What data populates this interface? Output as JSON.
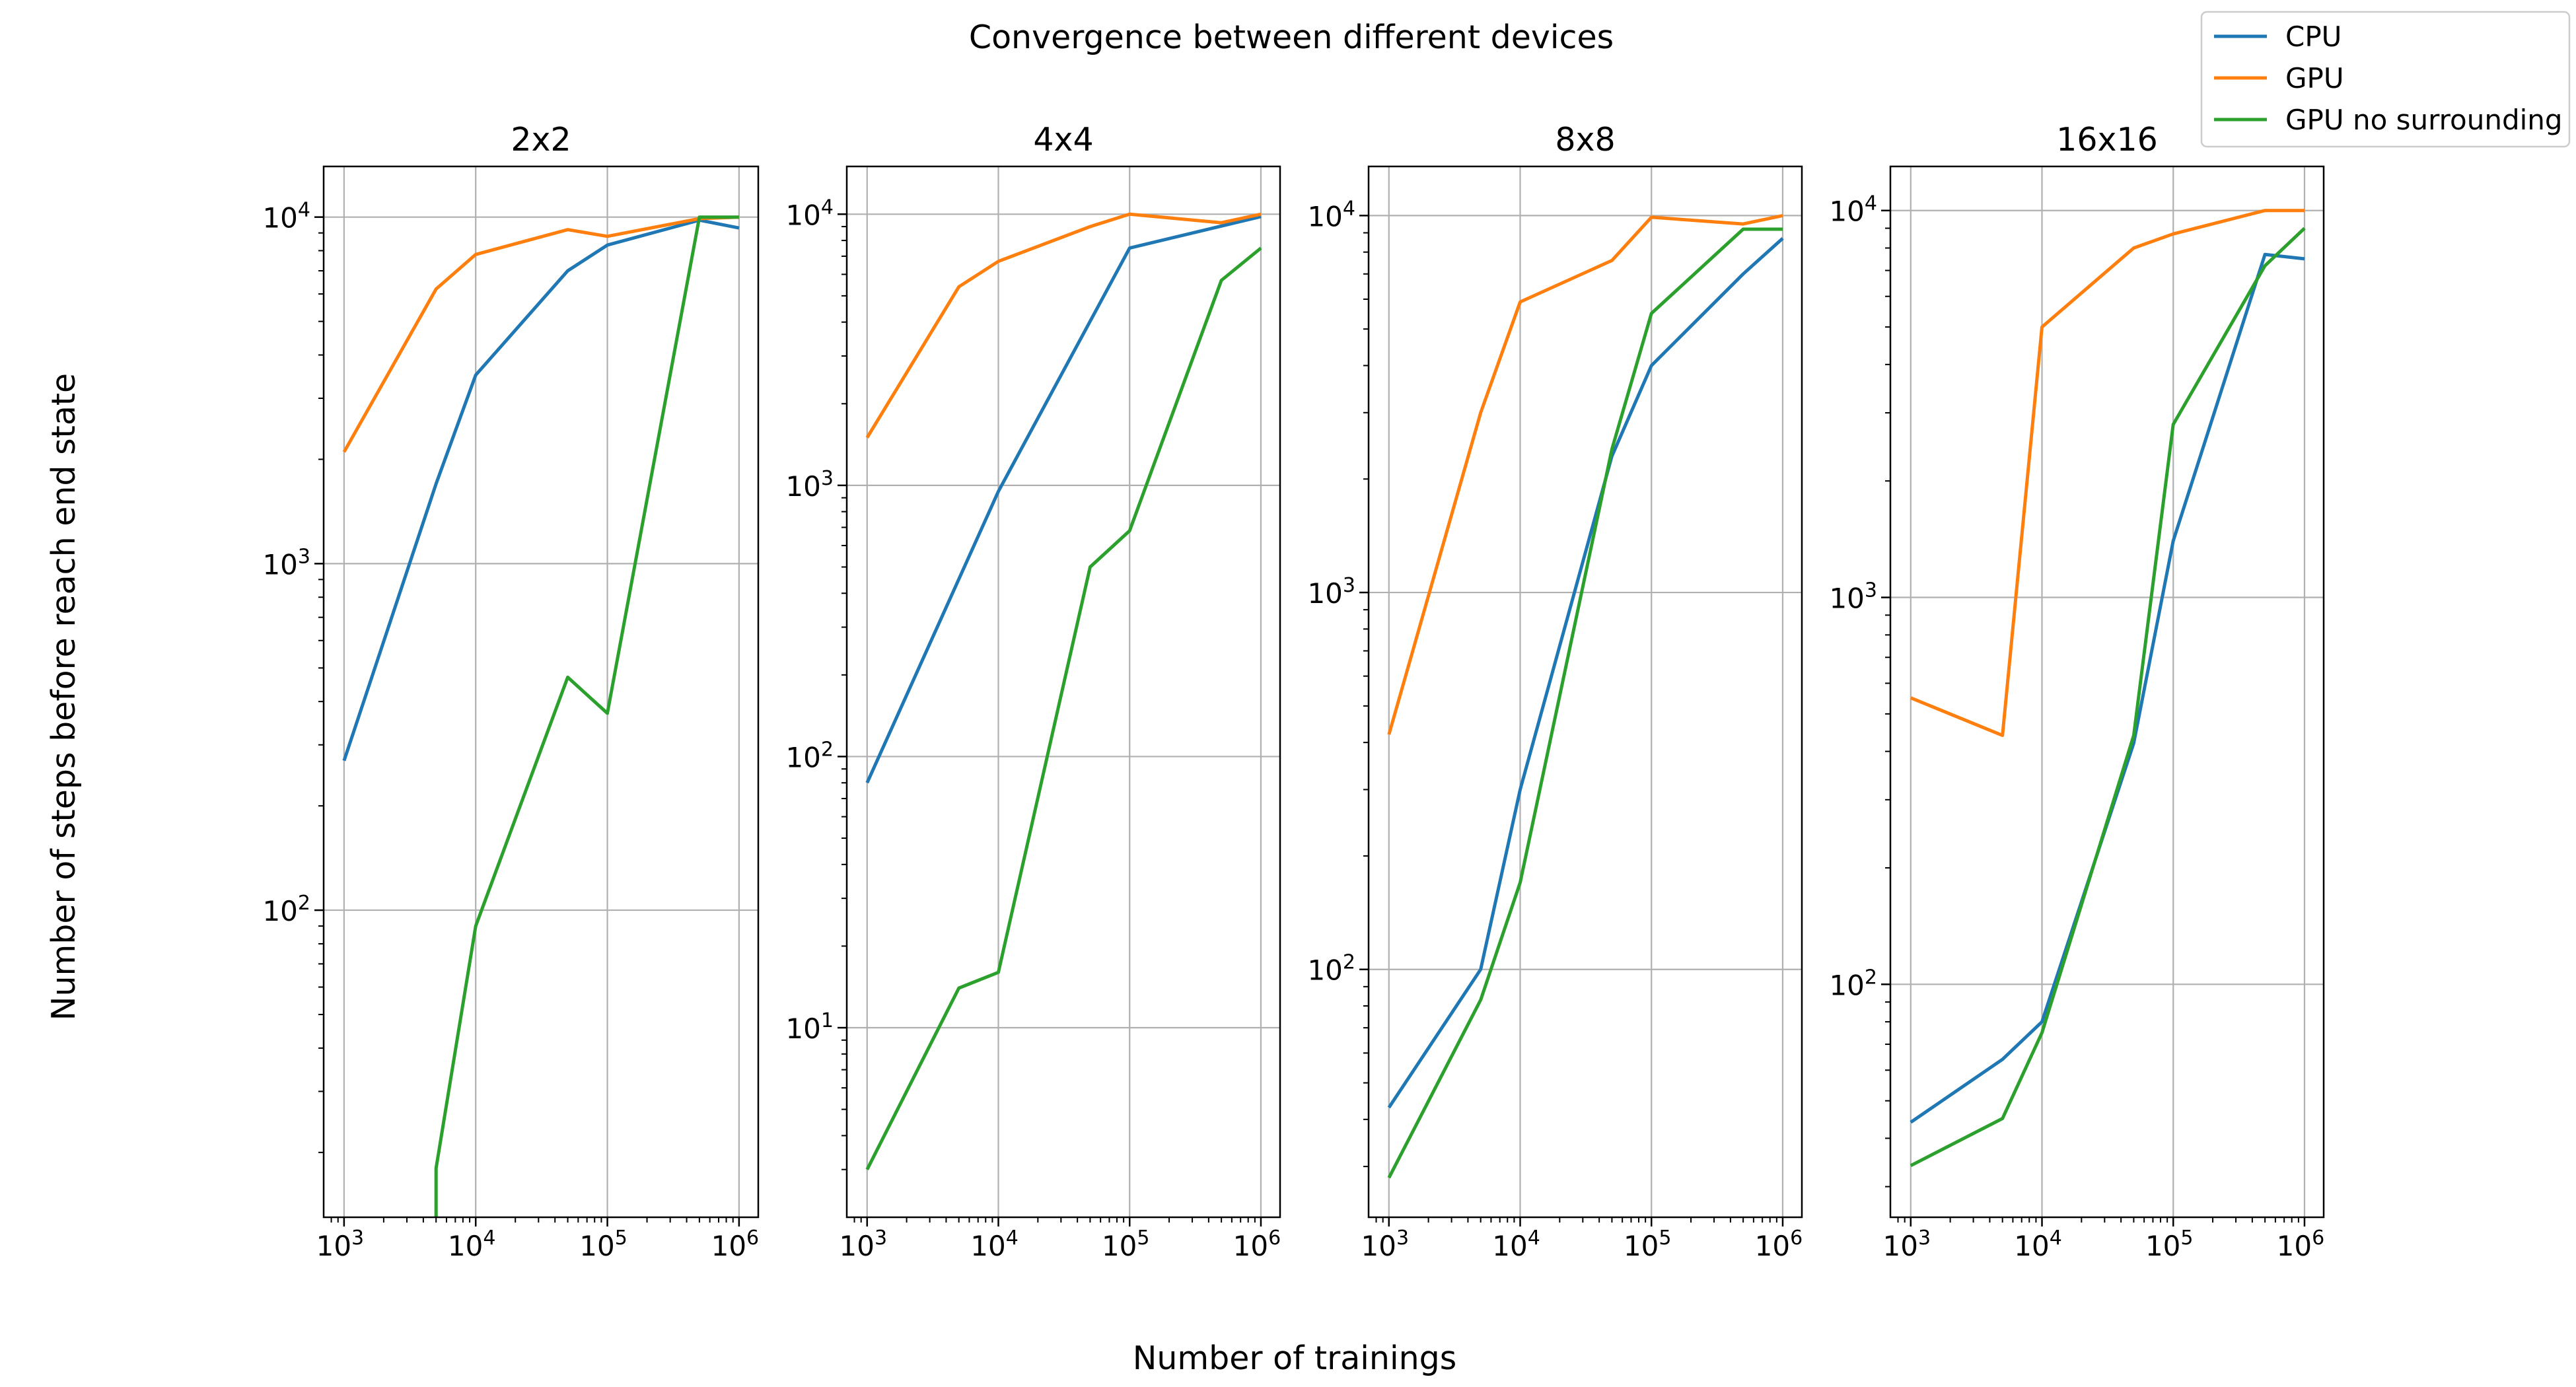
{
  "figure": {
    "suptitle": "Convergence between different devices",
    "xlabel": "Number of trainings",
    "ylabel": "Number of steps before reach end state"
  },
  "legend": {
    "placement": "upper-right",
    "entries": [
      {
        "label": "CPU",
        "color": "#1f77b4"
      },
      {
        "label": "GPU",
        "color": "#ff7f0e"
      },
      {
        "label": "GPU no surrounding",
        "color": "#2ca02c"
      }
    ]
  },
  "chart_data": [
    {
      "type": "line",
      "title": "2x2",
      "x_scale": "log",
      "y_scale": "log",
      "xlim": [
        700,
        1400000
      ],
      "ylim": [
        13,
        14000
      ],
      "x_ticks": [
        {
          "value": 1000,
          "exp": "3"
        },
        {
          "value": 10000,
          "exp": "4"
        },
        {
          "value": 100000,
          "exp": "5"
        },
        {
          "value": 1000000,
          "exp": "6"
        }
      ],
      "y_ticks": [
        {
          "value": 100,
          "exp": "2"
        },
        {
          "value": 1000,
          "exp": "3"
        },
        {
          "value": 10000,
          "exp": "4"
        }
      ],
      "grid": true,
      "series": [
        {
          "name": "CPU",
          "color": "#1f77b4",
          "x": [
            1000,
            5000,
            10000,
            50000,
            100000,
            500000,
            1000000
          ],
          "y": [
            270,
            1700,
            3500,
            7000,
            8300,
            9800,
            9300
          ]
        },
        {
          "name": "GPU",
          "color": "#ff7f0e",
          "x": [
            1000,
            5000,
            10000,
            50000,
            100000,
            500000,
            1000000
          ],
          "y": [
            2100,
            6200,
            7800,
            9200,
            8800,
            9900,
            10000
          ]
        },
        {
          "name": "GPU no surrounding",
          "color": "#2ca02c",
          "x": [
            5000,
            5000,
            10000,
            50000,
            100000,
            500000,
            1000000
          ],
          "y": [
            11,
            18,
            90,
            470,
            370,
            10000,
            10000
          ]
        }
      ]
    },
    {
      "type": "line",
      "title": "4x4",
      "x_scale": "log",
      "y_scale": "log",
      "xlim": [
        700,
        1400000
      ],
      "ylim": [
        2,
        15000
      ],
      "x_ticks": [
        {
          "value": 1000,
          "exp": "3"
        },
        {
          "value": 10000,
          "exp": "4"
        },
        {
          "value": 100000,
          "exp": "5"
        },
        {
          "value": 1000000,
          "exp": "6"
        }
      ],
      "y_ticks": [
        {
          "value": 10,
          "exp": "1"
        },
        {
          "value": 100,
          "exp": "2"
        },
        {
          "value": 1000,
          "exp": "3"
        },
        {
          "value": 10000,
          "exp": "4"
        }
      ],
      "grid": true,
      "series": [
        {
          "name": "CPU",
          "color": "#1f77b4",
          "x": [
            1000,
            10000,
            100000,
            1000000
          ],
          "y": [
            80,
            950,
            7500,
            9800
          ]
        },
        {
          "name": "GPU",
          "color": "#ff7f0e",
          "x": [
            1000,
            5000,
            10000,
            50000,
            100000,
            500000,
            1000000
          ],
          "y": [
            1500,
            5400,
            6700,
            9000,
            10000,
            9300,
            10000
          ]
        },
        {
          "name": "GPU no surrounding",
          "color": "#2ca02c",
          "x": [
            1000,
            5000,
            10000,
            50000,
            100000,
            500000,
            1000000
          ],
          "y": [
            3,
            14,
            16,
            500,
            680,
            5700,
            7500
          ]
        }
      ]
    },
    {
      "type": "line",
      "title": "8x8",
      "x_scale": "log",
      "y_scale": "log",
      "xlim": [
        700,
        1400000
      ],
      "ylim": [
        22,
        13500
      ],
      "x_ticks": [
        {
          "value": 1000,
          "exp": "3"
        },
        {
          "value": 10000,
          "exp": "4"
        },
        {
          "value": 100000,
          "exp": "5"
        },
        {
          "value": 1000000,
          "exp": "6"
        }
      ],
      "y_ticks": [
        {
          "value": 100,
          "exp": "2"
        },
        {
          "value": 1000,
          "exp": "3"
        },
        {
          "value": 10000,
          "exp": "4"
        }
      ],
      "grid": true,
      "series": [
        {
          "name": "CPU",
          "color": "#1f77b4",
          "x": [
            1000,
            5000,
            10000,
            50000,
            100000,
            500000,
            1000000
          ],
          "y": [
            43,
            100,
            300,
            2300,
            4000,
            7000,
            8700
          ]
        },
        {
          "name": "GPU",
          "color": "#ff7f0e",
          "x": [
            1000,
            5000,
            10000,
            50000,
            100000,
            500000,
            1000000
          ],
          "y": [
            420,
            3000,
            5900,
            7600,
            9900,
            9500,
            10000
          ]
        },
        {
          "name": "GPU no surrounding",
          "color": "#2ca02c",
          "x": [
            1000,
            5000,
            10000,
            50000,
            100000,
            500000,
            1000000
          ],
          "y": [
            28,
            83,
            170,
            2400,
            5500,
            9200,
            9200
          ]
        }
      ]
    },
    {
      "type": "line",
      "title": "16x16",
      "x_scale": "log",
      "y_scale": "log",
      "xlim": [
        700,
        1400000
      ],
      "ylim": [
        25,
        13000
      ],
      "x_ticks": [
        {
          "value": 1000,
          "exp": "3"
        },
        {
          "value": 10000,
          "exp": "4"
        },
        {
          "value": 100000,
          "exp": "5"
        },
        {
          "value": 1000000,
          "exp": "6"
        }
      ],
      "y_ticks": [
        {
          "value": 100,
          "exp": "2"
        },
        {
          "value": 1000,
          "exp": "3"
        },
        {
          "value": 10000,
          "exp": "4"
        }
      ],
      "grid": true,
      "series": [
        {
          "name": "CPU",
          "color": "#1f77b4",
          "x": [
            1000,
            5000,
            10000,
            50000,
            100000,
            500000,
            1000000
          ],
          "y": [
            44,
            64,
            80,
            420,
            1400,
            7700,
            7500
          ]
        },
        {
          "name": "GPU",
          "color": "#ff7f0e",
          "x": [
            1000,
            5000,
            10000,
            50000,
            100000,
            500000,
            1000000
          ],
          "y": [
            550,
            440,
            5000,
            8000,
            8700,
            10000,
            10000
          ]
        },
        {
          "name": "GPU no surrounding",
          "color": "#2ca02c",
          "x": [
            1000,
            5000,
            10000,
            50000,
            100000,
            500000,
            1000000
          ],
          "y": [
            34,
            45,
            75,
            440,
            2800,
            7200,
            9000
          ]
        }
      ]
    }
  ]
}
